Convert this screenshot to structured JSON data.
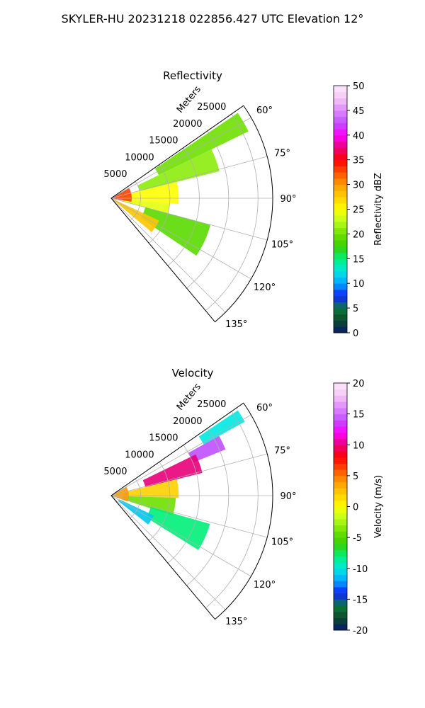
{
  "figure": {
    "title": "SKYLER-HU  20231218  022856.427 UTC Elevation 12°"
  },
  "chart_data": [
    {
      "type": "heatmap",
      "projection": "polar-sector",
      "title": "Reflectivity",
      "radial_axis": {
        "label": "Meters",
        "ticks": [
          5000,
          10000,
          15000,
          20000,
          25000
        ],
        "tick_labels": [
          "5000",
          "10000",
          "15000",
          "20000",
          "25000"
        ],
        "range": [
          0,
          27500
        ]
      },
      "angular_axis": {
        "range_deg": [
          55,
          140
        ],
        "ticks": [
          60,
          75,
          90,
          105,
          120,
          135
        ],
        "tick_labels": [
          "60°",
          "75°",
          "90°",
          "105°",
          "120°",
          "135°"
        ]
      },
      "grid": true,
      "colorbar": {
        "label": "Reflectivity dBZ",
        "range": [
          0,
          50
        ],
        "ticks": [
          0,
          5,
          10,
          15,
          20,
          25,
          30,
          35,
          40,
          45,
          50
        ],
        "tick_labels": [
          "0",
          "5",
          "10",
          "15",
          "20",
          "25",
          "30",
          "35",
          "40",
          "45",
          "50"
        ]
      },
      "colors": {
        "stops": [
          "#08186b",
          "#0b4a2a",
          "#0a7a3e",
          "#1020ff",
          "#00a8ff",
          "#00e8e0",
          "#00f07a",
          "#3ad000",
          "#6ee000",
          "#b8ff20",
          "#ffff00",
          "#ffd000",
          "#ff9a00",
          "#ff5000",
          "#ff0000",
          "#e8007a",
          "#ff00ff",
          "#c050ff",
          "#e088ff",
          "#f4c8f4",
          "#fde8fd"
        ]
      },
      "data_regions": [
        {
          "az": [
            56,
            64
          ],
          "range": [
            9000,
            26000
          ],
          "value": 20
        },
        {
          "az": [
            64,
            76
          ],
          "range": [
            5000,
            19000
          ],
          "value": 21
        },
        {
          "az": [
            76,
            95
          ],
          "range": [
            2000,
            11500
          ],
          "value": 25
        },
        {
          "az": [
            95,
            105
          ],
          "range": [
            2000,
            10000
          ],
          "value": 24
        },
        {
          "az": [
            105,
            124
          ],
          "range": [
            6000,
            17500
          ],
          "value": 19
        },
        {
          "az": [
            115,
            130
          ],
          "range": [
            500,
            9000
          ],
          "value": 28
        },
        {
          "az": [
            60,
            100
          ],
          "range": [
            0,
            3500
          ],
          "value": 33
        }
      ]
    },
    {
      "type": "heatmap",
      "projection": "polar-sector",
      "title": "Velocity",
      "radial_axis": {
        "label": "Meters",
        "ticks": [
          5000,
          10000,
          15000,
          20000,
          25000
        ],
        "tick_labels": [
          "5000",
          "10000",
          "15000",
          "20000",
          "25000"
        ],
        "range": [
          0,
          27500
        ]
      },
      "angular_axis": {
        "range_deg": [
          55,
          140
        ],
        "ticks": [
          60,
          75,
          90,
          105,
          120,
          135
        ],
        "tick_labels": [
          "60°",
          "75°",
          "90°",
          "105°",
          "120°",
          "135°"
        ]
      },
      "grid": true,
      "colorbar": {
        "label": "Velocity (m/s)",
        "range": [
          -20,
          20
        ],
        "ticks": [
          -20,
          -15,
          -10,
          -5,
          0,
          5,
          10,
          15,
          20
        ],
        "tick_labels": [
          "-20",
          "-15",
          "-10",
          "-5",
          "0",
          "5",
          "10",
          "15",
          "20"
        ]
      },
      "colors": {
        "stops": [
          "#08186b",
          "#0b4a2a",
          "#0a7a3e",
          "#1020ff",
          "#00a8ff",
          "#00e8e0",
          "#00f07a",
          "#3ad000",
          "#6ee000",
          "#b8ff20",
          "#ffff00",
          "#ffd000",
          "#ff9a00",
          "#ff5000",
          "#ff0000",
          "#e8007a",
          "#ff00ff",
          "#c050ff",
          "#e088ff",
          "#f4c8f4",
          "#fde8fd"
        ]
      },
      "data_regions": [
        {
          "az": [
            56,
            61
          ],
          "range": [
            18000,
            26000
          ],
          "value": -10
        },
        {
          "az": [
            61,
            68
          ],
          "range": [
            15000,
            21000
          ],
          "value": 14
        },
        {
          "az": [
            64,
            76
          ],
          "range": [
            6000,
            16000
          ],
          "value": 10
        },
        {
          "az": [
            76,
            92
          ],
          "range": [
            2000,
            11500
          ],
          "value": 2
        },
        {
          "az": [
            92,
            108
          ],
          "range": [
            2000,
            11000
          ],
          "value": -4
        },
        {
          "az": [
            106,
            122
          ],
          "range": [
            7000,
            17500
          ],
          "value": -8
        },
        {
          "az": [
            115,
            128
          ],
          "range": [
            1500,
            8000
          ],
          "value": -11
        },
        {
          "az": [
            60,
            110
          ],
          "range": [
            0,
            3000
          ],
          "value": 4
        }
      ]
    }
  ]
}
